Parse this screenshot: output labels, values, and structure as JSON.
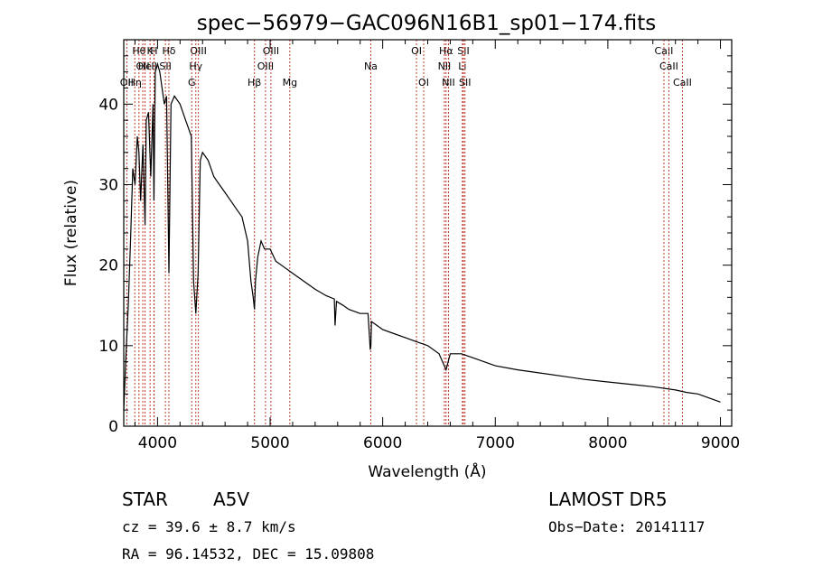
{
  "chart_data": {
    "type": "line",
    "title": "spec−56979−GAC096N16B1_sp01−174.fits",
    "xlabel": "Wavelength (Å)",
    "ylabel": "Flux (relative)",
    "xlim": [
      3700,
      9100
    ],
    "ylim": [
      0,
      48
    ],
    "xticks": [
      4000,
      5000,
      6000,
      7000,
      8000,
      9000
    ],
    "yticks": [
      0,
      10,
      20,
      30,
      40
    ],
    "grid": false,
    "series": [
      {
        "x": [
          3700,
          3720,
          3740,
          3760,
          3780,
          3800,
          3820,
          3835,
          3850,
          3870,
          3889,
          3900,
          3920,
          3940,
          3960,
          3968,
          3980,
          4000,
          4020,
          4040,
          4060,
          4080,
          4101,
          4120,
          4150,
          4200,
          4250,
          4300,
          4320,
          4340,
          4360,
          4380,
          4400,
          4450,
          4500,
          4550,
          4600,
          4650,
          4700,
          4750,
          4800,
          4830,
          4850,
          4861,
          4870,
          4890,
          4920,
          4950,
          5000,
          5050,
          5100,
          5200,
          5300,
          5400,
          5500,
          5570,
          5577,
          5590,
          5650,
          5700,
          5800,
          5870,
          5890,
          5895,
          5900,
          5950,
          6000,
          6100,
          6200,
          6300,
          6400,
          6500,
          6563,
          6600,
          6700,
          6800,
          7000,
          7200,
          7400,
          7600,
          7800,
          8000,
          8200,
          8400,
          8600,
          8700,
          8800,
          8900,
          9000
        ],
        "y": [
          2,
          9,
          15,
          23,
          32,
          30,
          36,
          34,
          28,
          35,
          25,
          38,
          39,
          31,
          40,
          28,
          44,
          45,
          44,
          42,
          40,
          41,
          19,
          40,
          41,
          40,
          38,
          36,
          18,
          14,
          19,
          33,
          34,
          33,
          31,
          30,
          29,
          28,
          27,
          26,
          23,
          18,
          16,
          14.5,
          18,
          21,
          23,
          22,
          22,
          20.5,
          20,
          19,
          18,
          17,
          16.2,
          15.8,
          12.5,
          15.5,
          15,
          14.5,
          14,
          14,
          9.5,
          10,
          13,
          12.5,
          12,
          11.5,
          11,
          10.5,
          10,
          9,
          7,
          9,
          9,
          8.5,
          7.5,
          7,
          6.6,
          6.2,
          5.8,
          5.5,
          5.2,
          4.9,
          4.5,
          4.2,
          4,
          3.5,
          3
        ]
      }
    ],
    "lines": [
      {
        "wl": 3835,
        "label": "Hθ",
        "row": 1
      },
      {
        "wl": 3869,
        "label": "OII",
        "row": 2
      },
      {
        "wl": 3727,
        "label": "OII",
        "row": 3
      },
      {
        "wl": 3889,
        "label": "He",
        "row": 2
      },
      {
        "wl": 3798,
        "label": "Hη",
        "row": 3
      },
      {
        "wl": 3934,
        "label": "K",
        "row": 1
      },
      {
        "wl": 3968,
        "label": "H",
        "row": 1
      },
      {
        "wl": 3970,
        "label": "II",
        "row": 2
      },
      {
        "wl": 4101,
        "label": "Hδ",
        "row": 1
      },
      {
        "wl": 4070,
        "label": "SII",
        "row": 2
      },
      {
        "wl": 4340,
        "label": "Hγ",
        "row": 2
      },
      {
        "wl": 4363,
        "label": "OIII",
        "row": 1
      },
      {
        "wl": 4304,
        "label": "G",
        "row": 3
      },
      {
        "wl": 4861,
        "label": "Hβ",
        "row": 3
      },
      {
        "wl": 5007,
        "label": "OIII",
        "row": 1
      },
      {
        "wl": 4959,
        "label": "OIII",
        "row": 2
      },
      {
        "wl": 5175,
        "label": "Mg",
        "row": 3
      },
      {
        "wl": 5894,
        "label": "Na",
        "row": 2
      },
      {
        "wl": 6300,
        "label": "OI",
        "row": 1
      },
      {
        "wl": 6364,
        "label": "OI",
        "row": 3
      },
      {
        "wl": 6563,
        "label": "Hα",
        "row": 1
      },
      {
        "wl": 6548,
        "label": "NII",
        "row": 2
      },
      {
        "wl": 6584,
        "label": "NII",
        "row": 3
      },
      {
        "wl": 6717,
        "label": "SII",
        "row": 1
      },
      {
        "wl": 6708,
        "label": "Li",
        "row": 2
      },
      {
        "wl": 6731,
        "label": "SII",
        "row": 3
      },
      {
        "wl": 8498,
        "label": "CaII",
        "row": 1
      },
      {
        "wl": 8542,
        "label": "CaII",
        "row": 2
      },
      {
        "wl": 8662,
        "label": "CaII",
        "row": 3
      }
    ],
    "line_color": "#c0392b"
  },
  "info": {
    "class_label": "STAR",
    "subclass": "A5V",
    "survey": "LAMOST DR5",
    "cz": "cz = 39.6 ± 8.7 km/s",
    "obs_date": "Obs−Date: 20141117",
    "radec": "RA =  96.14532, DEC =  15.09808"
  }
}
